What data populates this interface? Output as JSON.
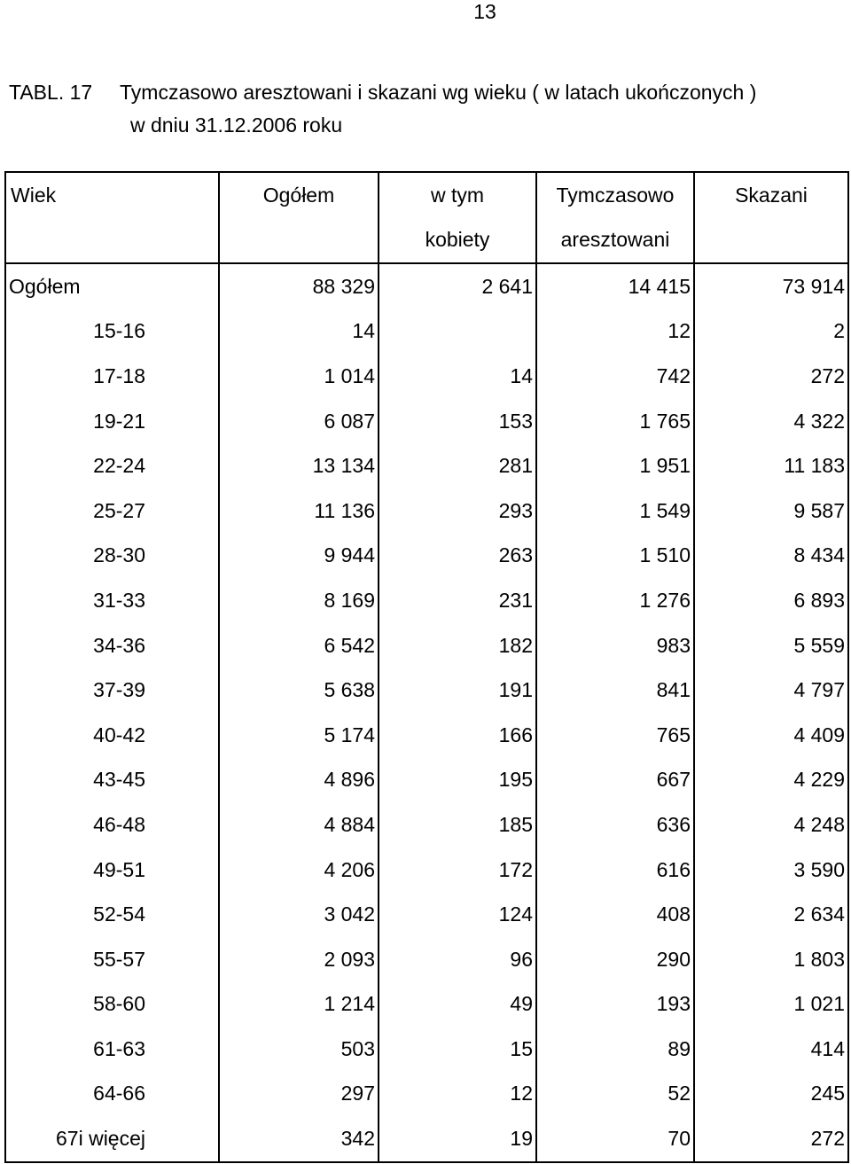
{
  "page_number": "13",
  "title": {
    "label": "TABL. 17",
    "text": "Tymczasowo aresztowani i skazani wg wieku ( w latach ukończonych )",
    "date_line": "w dniu 31.12.2006 roku"
  },
  "table": {
    "headers": {
      "wiek": "Wiek",
      "ogolem": "Ogółem",
      "w_tym_line1": "w tym",
      "w_tym_line2": "kobiety",
      "tymczasowo_line1": "Tymczasowo",
      "tymczasowo_line2": "aresztowani",
      "skazani": "Skazani"
    },
    "rows": [
      {
        "wiek": "Ogółem",
        "ogolem": "88 329",
        "kobiety": "2 641",
        "tymczasowo": "14 415",
        "skazani": "73 914"
      },
      {
        "wiek": "15-16",
        "ogolem": "14",
        "kobiety": "",
        "tymczasowo": "12",
        "skazani": "2"
      },
      {
        "wiek": "17-18",
        "ogolem": "1 014",
        "kobiety": "14",
        "tymczasowo": "742",
        "skazani": "272"
      },
      {
        "wiek": "19-21",
        "ogolem": "6 087",
        "kobiety": "153",
        "tymczasowo": "1 765",
        "skazani": "4 322"
      },
      {
        "wiek": "22-24",
        "ogolem": "13 134",
        "kobiety": "281",
        "tymczasowo": "1 951",
        "skazani": "11 183"
      },
      {
        "wiek": "25-27",
        "ogolem": "11 136",
        "kobiety": "293",
        "tymczasowo": "1 549",
        "skazani": "9 587"
      },
      {
        "wiek": "28-30",
        "ogolem": "9 944",
        "kobiety": "263",
        "tymczasowo": "1 510",
        "skazani": "8 434"
      },
      {
        "wiek": "31-33",
        "ogolem": "8 169",
        "kobiety": "231",
        "tymczasowo": "1 276",
        "skazani": "6 893"
      },
      {
        "wiek": "34-36",
        "ogolem": "6 542",
        "kobiety": "182",
        "tymczasowo": "983",
        "skazani": "5 559"
      },
      {
        "wiek": "37-39",
        "ogolem": "5 638",
        "kobiety": "191",
        "tymczasowo": "841",
        "skazani": "4 797"
      },
      {
        "wiek": "40-42",
        "ogolem": "5 174",
        "kobiety": "166",
        "tymczasowo": "765",
        "skazani": "4 409"
      },
      {
        "wiek": "43-45",
        "ogolem": "4 896",
        "kobiety": "195",
        "tymczasowo": "667",
        "skazani": "4 229"
      },
      {
        "wiek": "46-48",
        "ogolem": "4 884",
        "kobiety": "185",
        "tymczasowo": "636",
        "skazani": "4 248"
      },
      {
        "wiek": "49-51",
        "ogolem": "4 206",
        "kobiety": "172",
        "tymczasowo": "616",
        "skazani": "3 590"
      },
      {
        "wiek": "52-54",
        "ogolem": "3 042",
        "kobiety": "124",
        "tymczasowo": "408",
        "skazani": "2 634"
      },
      {
        "wiek": "55-57",
        "ogolem": "2 093",
        "kobiety": "96",
        "tymczasowo": "290",
        "skazani": "1 803"
      },
      {
        "wiek": "58-60",
        "ogolem": "1 214",
        "kobiety": "49",
        "tymczasowo": "193",
        "skazani": "1 021"
      },
      {
        "wiek": "61-63",
        "ogolem": "503",
        "kobiety": "15",
        "tymczasowo": "89",
        "skazani": "414"
      },
      {
        "wiek": "64-66",
        "ogolem": "297",
        "kobiety": "12",
        "tymczasowo": "52",
        "skazani": "245"
      },
      {
        "wiek": "67i więcej",
        "ogolem": "342",
        "kobiety": "19",
        "tymczasowo": "70",
        "skazani": "272"
      }
    ]
  }
}
